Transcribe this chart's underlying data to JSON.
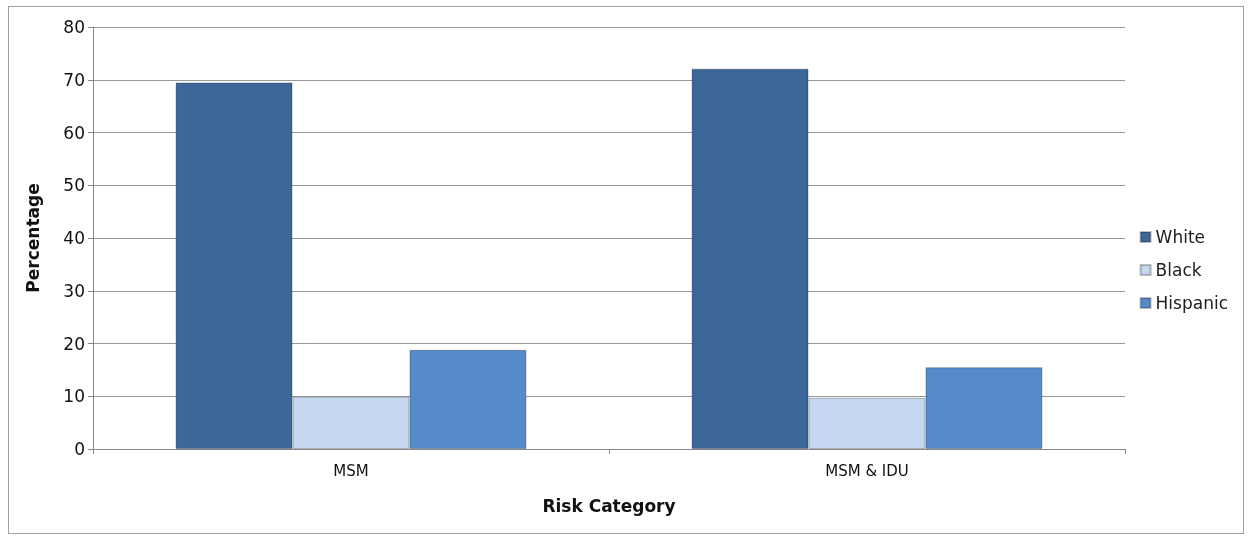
{
  "chart_data": {
    "type": "bar",
    "xlabel": "Risk Category",
    "ylabel": "Percentage",
    "categories": [
      "MSM",
      "MSM & IDU"
    ],
    "series": [
      {
        "name": "White",
        "color": "#3e6799",
        "values": [
          69.5,
          72.1
        ]
      },
      {
        "name": "Black",
        "color": "#c5d8f0",
        "values": [
          9.9,
          9.7
        ]
      },
      {
        "name": "Hispanic",
        "color": "#568bcb",
        "values": [
          18.8,
          15.5
        ]
      }
    ],
    "ylim": [
      0,
      80
    ],
    "yticks": [
      0,
      10,
      20,
      30,
      40,
      50,
      60,
      70,
      80
    ],
    "grid": "y",
    "legend": "right"
  }
}
